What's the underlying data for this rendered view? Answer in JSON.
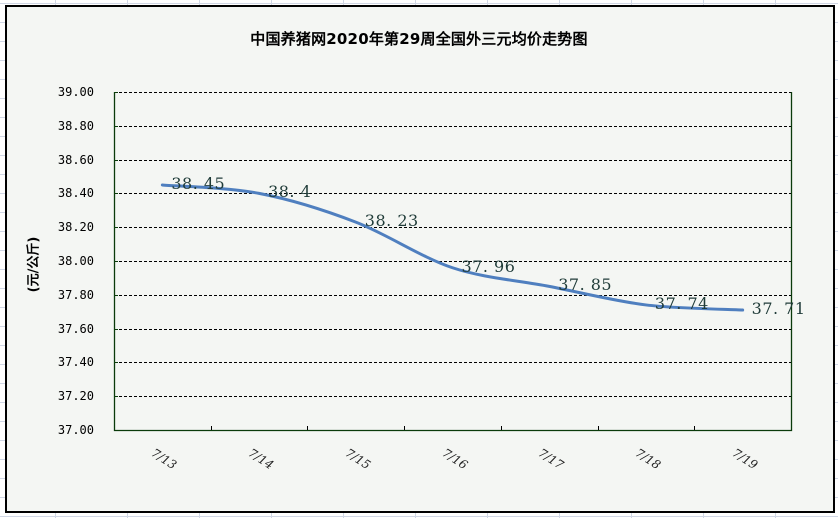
{
  "chart_data": {
    "type": "line",
    "title": "中国养猪网2020年第29周全国外三元均价走势图",
    "xlabel": "",
    "ylabel": "(元/公斤)",
    "categories": [
      "7/13",
      "7/14",
      "7/15",
      "7/16",
      "7/17",
      "7/18",
      "7/19"
    ],
    "series": [
      {
        "name": "外三元均价",
        "values": [
          38.45,
          38.4,
          38.23,
          37.96,
          37.85,
          37.74,
          37.71
        ],
        "labels": [
          "38.45",
          "38.4",
          "38.23",
          "37.96",
          "37.85",
          "37.74",
          "37.71"
        ],
        "color": "#4f7fbf"
      }
    ],
    "ylim": [
      37.0,
      39.0
    ],
    "yticks": [
      "39.00",
      "38.80",
      "38.60",
      "38.40",
      "38.20",
      "38.00",
      "37.80",
      "37.60",
      "37.40",
      "37.20",
      "37.00"
    ],
    "grid": "horizontal dashed",
    "legend": "none",
    "smoothed": true
  },
  "colors": {
    "chart_background": "#f4f6f3",
    "line": "#4f7fbf",
    "label_text": "#1f3b38",
    "axis": "#0a3a0a",
    "sheet_grid": "#d0d7e5"
  }
}
